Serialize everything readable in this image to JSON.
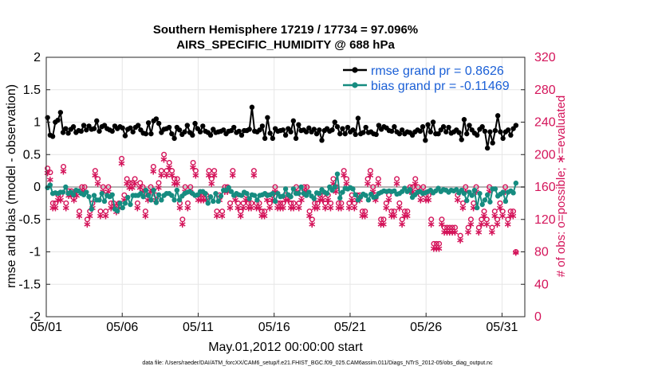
{
  "chart_data": {
    "type": "line",
    "title_line1": "Southern Hemisphere 17219 / 17734 = 97.096%",
    "title_line2": "AIRS_SPECIFIC_HUMIDITY @ 688 hPa",
    "xlabel": "May.01,2012 00:00:00 start",
    "ylabel": "rmse and bias (model - observation)",
    "ylabel_right": "# of obs: o=possible; ∗=evaluated",
    "xlim": [
      0,
      31.5
    ],
    "ylim": [
      -2,
      2
    ],
    "ylim_right": [
      0,
      320
    ],
    "x_ticks": [
      0,
      5,
      10,
      15,
      20,
      25,
      30
    ],
    "x_tick_labels": [
      "05/01",
      "05/06",
      "05/11",
      "05/16",
      "05/21",
      "05/26",
      "05/31"
    ],
    "y_ticks": [
      -2,
      -1.5,
      -1,
      -0.5,
      0,
      0.5,
      1,
      1.5,
      2
    ],
    "y_tick_labels": [
      "-2",
      "-1.5",
      "-1",
      "-0.5",
      "0",
      "0.5",
      "1",
      "1.5",
      "2"
    ],
    "y_ticks_right": [
      0,
      40,
      80,
      120,
      160,
      200,
      240,
      280,
      320
    ],
    "y_tick_labels_right": [
      "0",
      "40",
      "80",
      "120",
      "160",
      "200",
      "240",
      "280",
      "320"
    ],
    "legend_position": "top-right",
    "series": [
      {
        "name": "rmse grand pr = 0.8626",
        "color": "#000000",
        "values": [
          1.07,
          0.8,
          0.78,
          1.0,
          1.03,
          1.15,
          0.84,
          0.9,
          0.83,
          0.89,
          0.93,
          0.84,
          0.87,
          0.86,
          0.95,
          0.88,
          0.94,
          0.89,
          0.9,
          1.02,
          0.86,
          0.93,
          0.95,
          0.9,
          0.88,
          0.86,
          0.94,
          0.9,
          0.93,
          0.91,
          0.79,
          0.89,
          0.91,
          0.85,
          0.92,
          0.95,
          0.88,
          0.83,
          0.82,
          0.99,
          0.82,
          1.02,
          1.05,
          0.98,
          0.84,
          0.89,
          0.9,
          0.92,
          0.82,
          0.75,
          0.92,
          0.88,
          0.81,
          0.85,
          0.95,
          0.84,
          0.8,
          0.98,
          0.9,
          0.85,
          0.94,
          0.86,
          0.84,
          0.8,
          0.89,
          0.84,
          0.85,
          0.86,
          0.88,
          0.82,
          0.86,
          0.87,
          0.92,
          0.84,
          0.86,
          0.8,
          0.87,
          0.87,
          0.89,
          1.23,
          0.86,
          0.85,
          0.88,
          0.94,
          0.75,
          1.07,
          0.83,
          0.75,
          0.9,
          0.86,
          0.87,
          0.88,
          0.8,
          0.9,
          0.85,
          1.02,
          0.75,
          0.96,
          0.87,
          0.88,
          0.85,
          0.91,
          0.85,
          0.89,
          0.82,
          0.88,
          0.72,
          0.87,
          0.9,
          0.86,
          0.88,
          1.0,
          0.93,
          0.82,
          0.9,
          0.82,
          0.92,
          0.85,
          0.88,
          0.81,
          1.06,
          0.82,
          0.84,
          0.92,
          0.84,
          0.85,
          0.82,
          0.81,
          0.95,
          0.89,
          0.93,
          0.91,
          0.87,
          0.86,
          0.93,
          0.85,
          0.82,
          0.88,
          0.82,
          0.85,
          0.84,
          0.8,
          0.85,
          0.88,
          0.86,
          0.93,
          0.72,
          0.96,
          0.85,
          1.0,
          0.82,
          0.82,
          0.88,
          0.93,
          0.85,
          0.92,
          0.83,
          0.85,
          0.88,
          0.84,
          0.73,
          1.04,
          0.82,
          0.95,
          0.88,
          0.83,
          0.8,
          0.89,
          0.93,
          0.86,
          0.6,
          0.85,
          0.68,
          0.87,
          1.1,
          0.85,
          0.75,
          0.85,
          0.88,
          0.8,
          0.9,
          0.95
        ]
      },
      {
        "name": "bias grand pr = -0.11469",
        "color": "#168c80",
        "values": [
          -0.01,
          0.03,
          -0.1,
          -0.09,
          -0.1,
          -0.08,
          -0.08,
          0.0,
          -0.1,
          -0.08,
          -0.12,
          -0.05,
          -0.06,
          -0.1,
          -0.12,
          -0.08,
          -0.15,
          -0.34,
          -0.13,
          -0.2,
          -0.2,
          -0.1,
          -0.22,
          -0.13,
          -0.15,
          -0.12,
          -0.34,
          -0.37,
          -0.25,
          -0.32,
          -0.25,
          -0.16,
          -0.27,
          -0.13,
          -0.13,
          -0.13,
          -0.1,
          -0.15,
          -0.05,
          -0.13,
          -0.2,
          -0.05,
          -0.24,
          -0.12,
          -0.2,
          -0.13,
          -0.1,
          -0.1,
          -0.13,
          -0.2,
          -0.05,
          -0.2,
          -0.14,
          -0.1,
          -0.08,
          -0.07,
          -0.1,
          -0.13,
          -0.12,
          -0.07,
          -0.07,
          -0.1,
          -0.25,
          -0.15,
          -0.22,
          -0.1,
          -0.22,
          -0.14,
          -0.05,
          -0.05,
          -0.01,
          -0.07,
          -0.13,
          -0.1,
          -0.12,
          -0.13,
          -0.08,
          -0.1,
          -0.18,
          -0.12,
          -0.13,
          -0.2,
          -0.13,
          -0.12,
          -0.1,
          -0.13,
          -0.12,
          -0.1,
          -0.22,
          -0.1,
          -0.15,
          -0.14,
          -0.03,
          -0.12,
          -0.15,
          -0.03,
          -0.1,
          -0.1,
          0.0,
          -0.1,
          -0.13,
          -0.08,
          -0.14,
          -0.18,
          -0.09,
          -0.1,
          -0.04,
          -0.08,
          -0.1,
          0.0,
          -0.05,
          0.0,
          0.2,
          -0.17,
          -0.08,
          -0.02,
          -0.03,
          -0.01,
          -0.03,
          -0.12,
          -0.2,
          -0.15,
          -0.11,
          -0.13,
          -0.2,
          -0.11,
          -0.16,
          -0.15,
          -0.1,
          -0.08,
          -0.06,
          -0.07,
          -0.06,
          -0.07,
          -0.06,
          -0.11,
          -0.1,
          -0.07,
          -0.02,
          -0.07,
          -0.04,
          -0.16,
          -0.12,
          -0.08,
          -0.07,
          -0.1,
          -0.09,
          -0.07,
          -0.05,
          -0.09,
          -0.06,
          -0.02,
          -0.07,
          -0.04,
          -0.05,
          -0.08,
          -0.05,
          -0.06,
          -0.04,
          -0.09,
          -0.05,
          -0.1,
          -0.21,
          -0.08,
          -0.13,
          -0.05,
          -0.32,
          -0.1,
          -0.27,
          -0.2,
          -0.12,
          -0.23,
          -0.03,
          -0.03,
          -0.14,
          -0.11,
          -0.08,
          -0.22,
          -0.08,
          -0.06,
          -0.09,
          0.06
        ]
      }
    ],
    "obs_possible": [
      183,
      178,
      140,
      140,
      150,
      150,
      185,
      140,
      155,
      155,
      150,
      155,
      130,
      160,
      160,
      120,
      130,
      140,
      180,
      170,
      130,
      160,
      130,
      160,
      140,
      140,
      135,
      140,
      195,
      150,
      170,
      165,
      165,
      170,
      140,
      165,
      160,
      130,
      150,
      160,
      185,
      150,
      165,
      180,
      200,
      180,
      190,
      180,
      170,
      170,
      140,
      120,
      160,
      140,
      160,
      190,
      180,
      150,
      150,
      150,
      150,
      180,
      170,
      180,
      130,
      150,
      130,
      160,
      160,
      140,
      180,
      150,
      140,
      130,
      140,
      150,
      140,
      140,
      180,
      140,
      140,
      130,
      130,
      150,
      140,
      150,
      160,
      140,
      140,
      140,
      150,
      150,
      140,
      140,
      160,
      140,
      150,
      160,
      160,
      130,
      120,
      140,
      140,
      150,
      150,
      140,
      150,
      140,
      170,
      160,
      140,
      140,
      180,
      170,
      140,
      150,
      140,
      150,
      150,
      130,
      130,
      170,
      180,
      160,
      150,
      170,
      120,
      120,
      140,
      150,
      130,
      130,
      170,
      140,
      120,
      130,
      130,
      160,
      160,
      170,
      160,
      150,
      160,
      150,
      150,
      120,
      90,
      90,
      90,
      120,
      110,
      110,
      110,
      110,
      110,
      150,
      100,
      140,
      160,
      110,
      120,
      140,
      160,
      110,
      120,
      130,
      120,
      160,
      110,
      130,
      120,
      140,
      130,
      160,
      120,
      130,
      130,
      80
    ],
    "obs_evaluated": [
      178,
      170,
      135,
      135,
      145,
      145,
      180,
      135,
      150,
      150,
      145,
      150,
      125,
      155,
      155,
      115,
      125,
      135,
      175,
      165,
      125,
      155,
      125,
      155,
      135,
      135,
      130,
      135,
      190,
      145,
      165,
      160,
      160,
      165,
      135,
      160,
      155,
      125,
      145,
      155,
      180,
      145,
      160,
      175,
      195,
      175,
      185,
      175,
      165,
      165,
      135,
      115,
      155,
      135,
      155,
      185,
      175,
      145,
      145,
      145,
      145,
      175,
      165,
      175,
      125,
      145,
      125,
      155,
      155,
      135,
      175,
      145,
      135,
      125,
      135,
      145,
      135,
      135,
      175,
      135,
      135,
      125,
      125,
      145,
      135,
      145,
      155,
      135,
      135,
      135,
      145,
      145,
      135,
      135,
      155,
      135,
      145,
      155,
      155,
      125,
      115,
      135,
      135,
      145,
      145,
      135,
      145,
      135,
      165,
      155,
      135,
      135,
      175,
      165,
      135,
      145,
      135,
      145,
      145,
      125,
      125,
      165,
      175,
      155,
      145,
      165,
      115,
      115,
      135,
      145,
      125,
      125,
      165,
      135,
      115,
      125,
      125,
      155,
      155,
      165,
      155,
      145,
      155,
      145,
      145,
      115,
      85,
      85,
      85,
      115,
      105,
      105,
      105,
      105,
      105,
      145,
      95,
      135,
      155,
      105,
      115,
      135,
      155,
      105,
      115,
      125,
      115,
      155,
      105,
      125,
      115,
      135,
      125,
      155,
      115,
      125,
      125,
      80
    ]
  },
  "footnote": "data file: /Users/raeder/DAI/ATM_forcXX/CAM6_setup/f.e21.FHIST_BGC.f09_025.CAM6assim.011/Diags_NTrS_2012-05/obs_diag_output.nc",
  "colors": {
    "rmse": "#000000",
    "bias": "#168c80",
    "obs": "#d4145a",
    "zero_line": "#b4b4b4",
    "legend_text": "#1a5fd6"
  }
}
